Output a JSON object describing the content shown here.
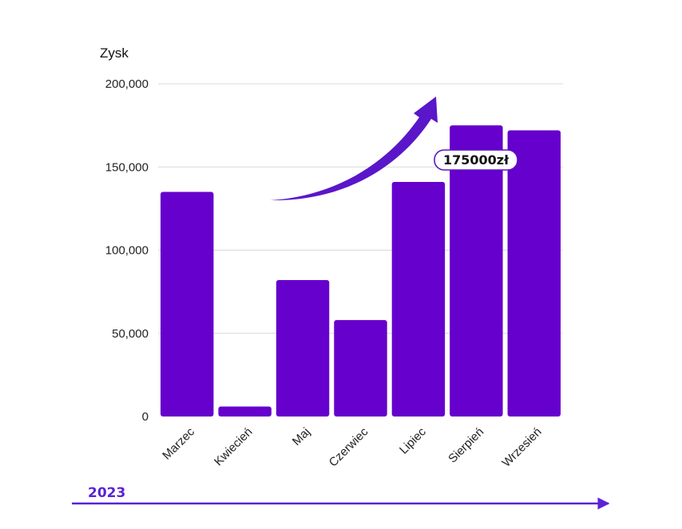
{
  "colors": {
    "bar": "#6600cc",
    "arrow": "#5a16c9",
    "grid": "#d9d9d9",
    "timeline": "#5b22d6"
  },
  "chart_data": {
    "type": "bar",
    "categories": [
      "Marzec",
      "Kwiecień",
      "Maj",
      "Czerwiec",
      "Lipiec",
      "Sierpień",
      "Wrzesień"
    ],
    "values": [
      135000,
      6000,
      82000,
      58000,
      141000,
      175000,
      172000
    ],
    "title": "",
    "xlabel": "",
    "ylabel": "Zysk",
    "ylim": [
      0,
      200000
    ],
    "yticks": [
      0,
      50000,
      100000,
      150000,
      200000
    ],
    "ytick_labels": [
      "0",
      "50,000",
      "100,000",
      "150,000",
      "200,000"
    ],
    "grid": true,
    "annotation": {
      "text": "175000zł",
      "category": "Sierpień"
    }
  },
  "timeline": {
    "label": "2023"
  }
}
